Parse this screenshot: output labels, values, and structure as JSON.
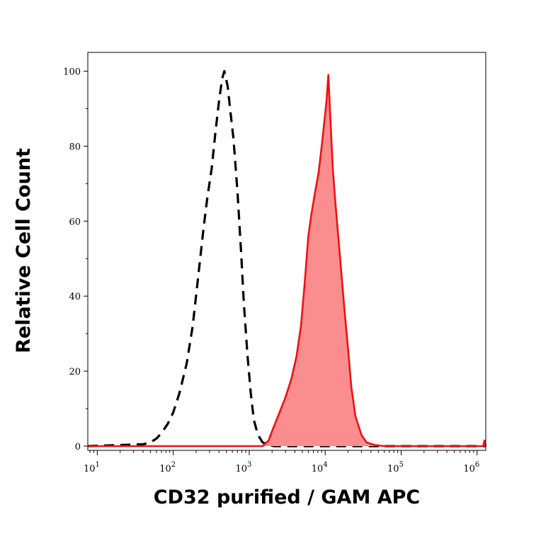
{
  "chart_data": {
    "type": "area",
    "title": "",
    "xlabel": "CD32 purified / GAM APC",
    "ylabel": "Relative Cell Count",
    "x_scale": "log",
    "xlim": [
      7.5,
      1300000
    ],
    "ylim": [
      0,
      105
    ],
    "grid": false,
    "y_ticks": [
      0,
      20,
      40,
      60,
      80,
      100
    ],
    "x_ticks": [
      {
        "value": 10,
        "base": "10",
        "exp": "1"
      },
      {
        "value": 100,
        "base": "10",
        "exp": "2"
      },
      {
        "value": 1000,
        "base": "10",
        "exp": "3"
      },
      {
        "value": 10000,
        "base": "10",
        "exp": "4"
      },
      {
        "value": 100000,
        "base": "10",
        "exp": "5"
      },
      {
        "value": 1000000,
        "base": "10",
        "exp": "6"
      }
    ],
    "series": [
      {
        "style": "dashed",
        "color": "#000000",
        "fill": "none",
        "points": [
          [
            7.5,
            0
          ],
          [
            40,
            0.5
          ],
          [
            50,
            1
          ],
          [
            60,
            2
          ],
          [
            70,
            3.5
          ],
          [
            85,
            6
          ],
          [
            100,
            9
          ],
          [
            120,
            14
          ],
          [
            150,
            22
          ],
          [
            180,
            32
          ],
          [
            210,
            44
          ],
          [
            250,
            58
          ],
          [
            280,
            66
          ],
          [
            320,
            74
          ],
          [
            360,
            84
          ],
          [
            400,
            92
          ],
          [
            440,
            98
          ],
          [
            470,
            100
          ],
          [
            520,
            96
          ],
          [
            560,
            90
          ],
          [
            620,
            82
          ],
          [
            700,
            68
          ],
          [
            780,
            52
          ],
          [
            850,
            38
          ],
          [
            950,
            24
          ],
          [
            1050,
            14
          ],
          [
            1150,
            7
          ],
          [
            1300,
            3
          ],
          [
            1500,
            1
          ],
          [
            1800,
            0.3
          ],
          [
            2100,
            0
          ],
          [
            1300000,
            0
          ]
        ]
      },
      {
        "style": "solid",
        "color": "#ee1111",
        "fill": "#fa8e8e",
        "points": [
          [
            7.5,
            0
          ],
          [
            1500,
            0
          ],
          [
            1800,
            1.5
          ],
          [
            2000,
            4
          ],
          [
            2400,
            8
          ],
          [
            3000,
            13
          ],
          [
            3600,
            18
          ],
          [
            4200,
            24
          ],
          [
            4800,
            32
          ],
          [
            5400,
            44
          ],
          [
            6000,
            56
          ],
          [
            6600,
            62
          ],
          [
            7400,
            68
          ],
          [
            8200,
            73
          ],
          [
            9000,
            80
          ],
          [
            9800,
            87
          ],
          [
            10400,
            92
          ],
          [
            11000,
            99
          ],
          [
            11800,
            86
          ],
          [
            12600,
            74
          ],
          [
            13600,
            65
          ],
          [
            15000,
            55
          ],
          [
            16500,
            45
          ],
          [
            18000,
            36
          ],
          [
            20000,
            26
          ],
          [
            22000,
            16
          ],
          [
            25000,
            8
          ],
          [
            30000,
            3
          ],
          [
            35000,
            1
          ],
          [
            45000,
            0.3
          ],
          [
            60000,
            0
          ],
          [
            1200000,
            0
          ],
          [
            1250000,
            1.5
          ],
          [
            1300000,
            0
          ]
        ]
      }
    ]
  }
}
